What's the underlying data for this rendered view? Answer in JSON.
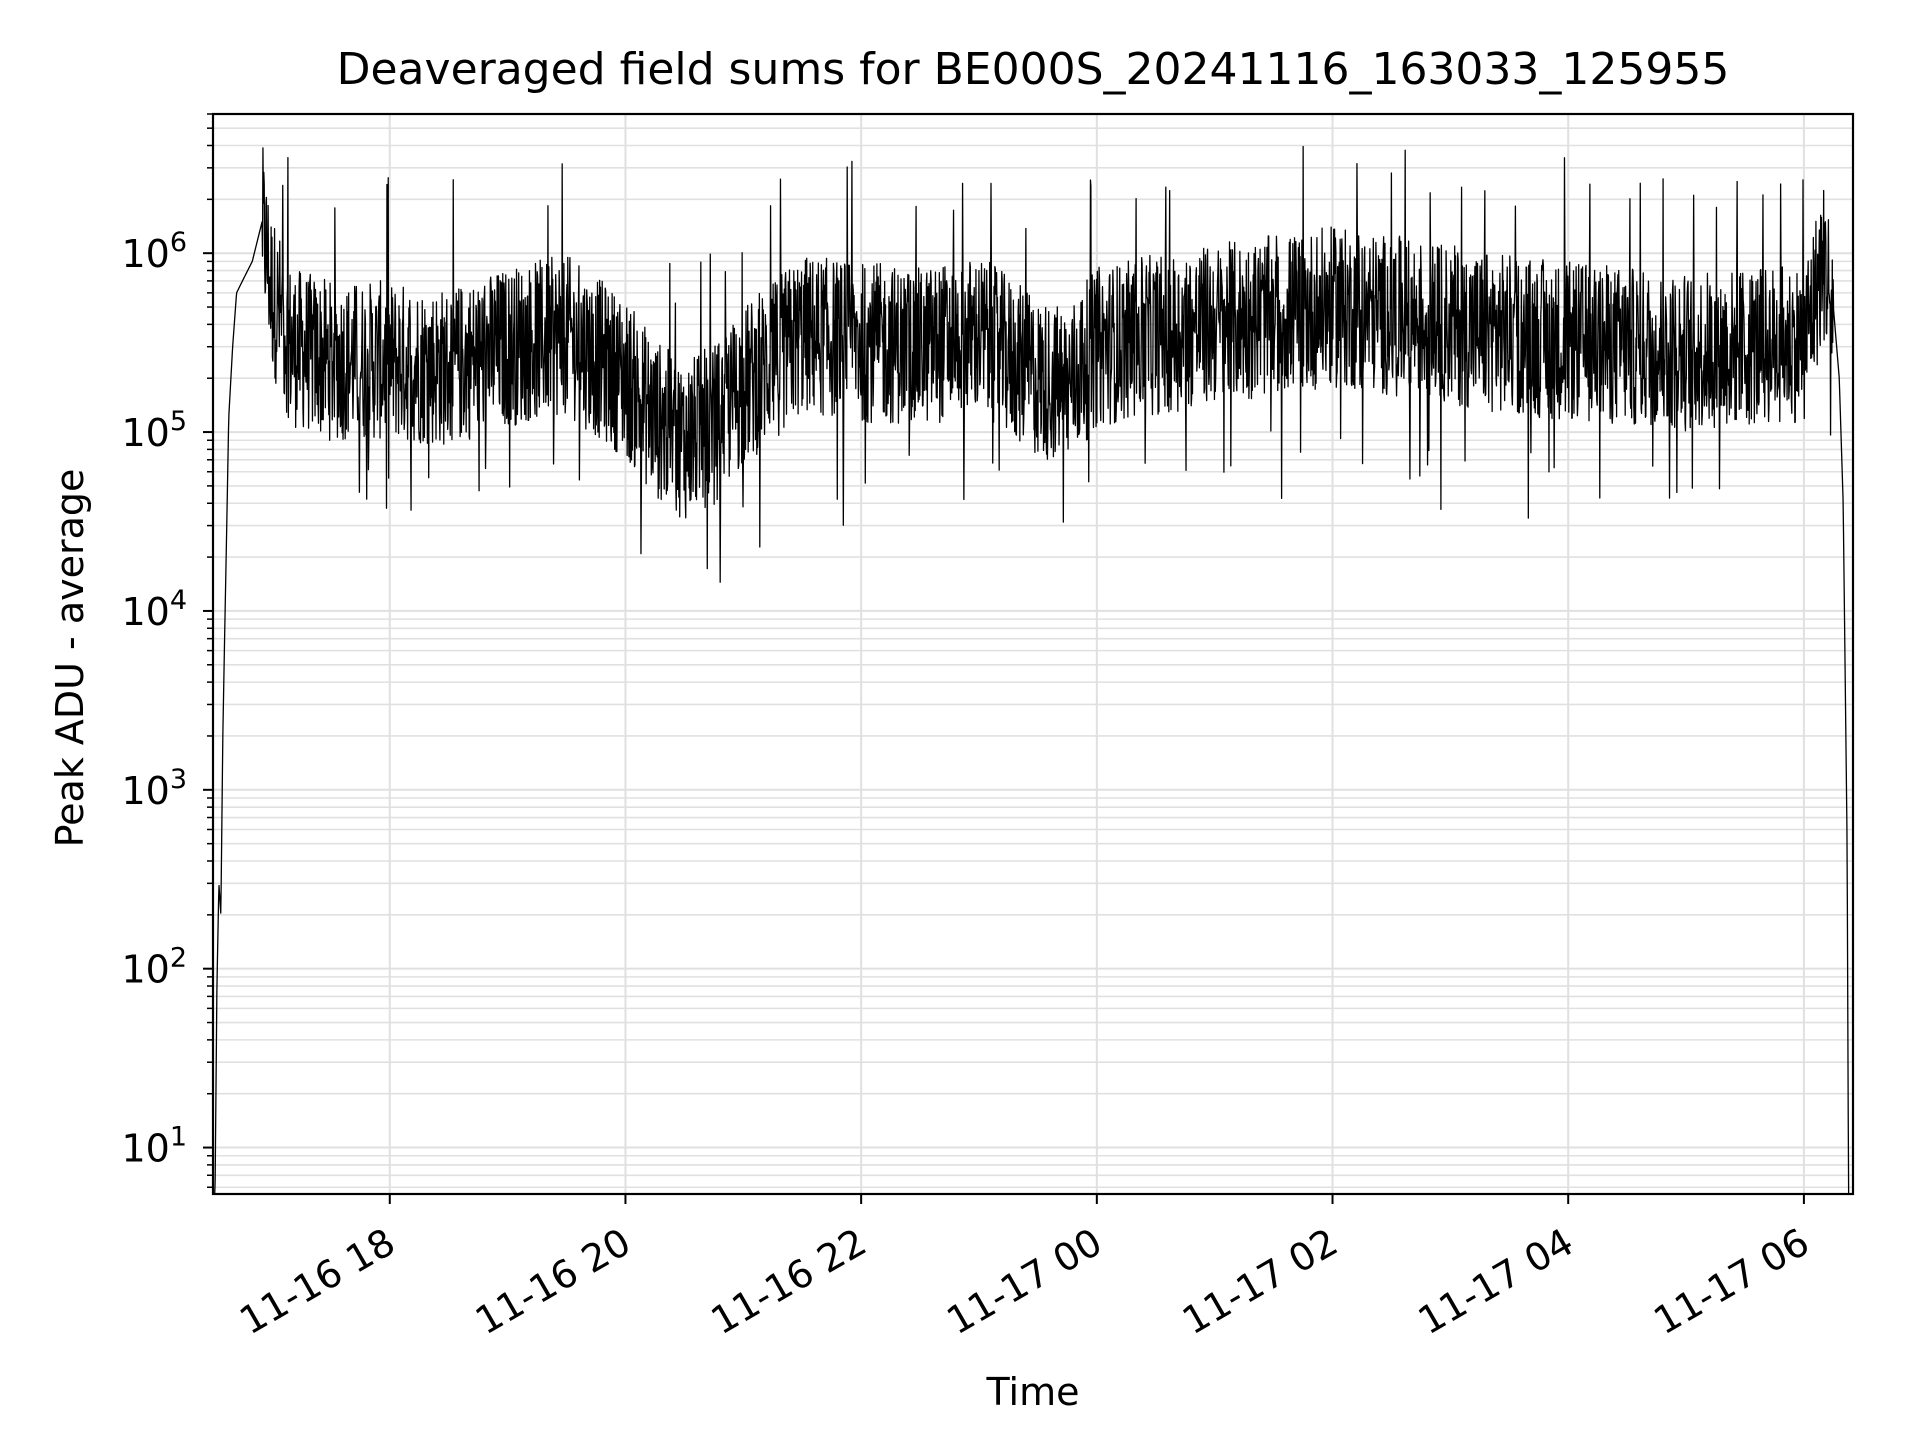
{
  "chart_data": {
    "type": "line",
    "title": "Deaveraged field sums for BE000S_20241116_163033_125955",
    "xlabel": "Time",
    "ylabel": "Peak ADU - average",
    "x_tick_labels": [
      "11-16 18",
      "11-16 20",
      "11-16 22",
      "11-17 00",
      "11-17 02",
      "11-17 04",
      "11-17 06"
    ],
    "y_tick_labels": [
      {
        "base": "10",
        "exp": "1"
      },
      {
        "base": "10",
        "exp": "2"
      },
      {
        "base": "10",
        "exp": "3"
      },
      {
        "base": "10",
        "exp": "4"
      },
      {
        "base": "10",
        "exp": "5"
      },
      {
        "base": "10",
        "exp": "6"
      }
    ],
    "x_range": [
      "2024-11-16 16:30",
      "2024-11-17 06:25"
    ],
    "y_range": [
      5.5,
      6000000
    ],
    "y_scale": "log",
    "grid": "major and minor",
    "line_color": "#000000",
    "grid_color": "#e0e0e0",
    "series": [
      {
        "points": [
          [
            "2024-11-16 16:30",
            0
          ],
          [
            "2024-11-16 16:31",
            5
          ],
          [
            "2024-11-16 16:32",
            80
          ],
          [
            "2024-11-16 16:33",
            300
          ],
          [
            "2024-11-16 16:34",
            200
          ],
          [
            "2024-11-16 16:35",
            2000
          ],
          [
            "2024-11-16 16:36",
            8000
          ],
          [
            "2024-11-16 16:37",
            30000
          ],
          [
            "2024-11-16 16:38",
            120000
          ],
          [
            "2024-11-16 16:40",
            300000
          ],
          [
            "2024-11-16 16:42",
            600000
          ],
          [
            "2024-11-16 16:45",
            700000
          ],
          [
            "2024-11-16 16:50",
            900000
          ],
          [
            "2024-11-16 16:55",
            1500000
          ],
          [
            "2024-11-16 17:00",
            600000
          ],
          [
            "2024-11-16 17:10",
            300000
          ],
          [
            "2024-11-16 17:30",
            250000
          ],
          [
            "2024-11-16 18:00",
            250000
          ],
          [
            "2024-11-16 18:30",
            230000
          ],
          [
            "2024-11-16 19:00",
            300000
          ],
          [
            "2024-11-16 19:30",
            350000
          ],
          [
            "2024-11-16 20:00",
            200000
          ],
          [
            "2024-11-16 20:15",
            120000
          ],
          [
            "2024-11-16 20:30",
            90000
          ],
          [
            "2024-11-16 20:45",
            110000
          ],
          [
            "2024-11-16 21:00",
            180000
          ],
          [
            "2024-11-16 21:30",
            350000
          ],
          [
            "2024-11-16 22:00",
            320000
          ],
          [
            "2024-11-16 22:30",
            300000
          ],
          [
            "2024-11-16 23:00",
            350000
          ],
          [
            "2024-11-16 23:30",
            200000
          ],
          [
            "2024-11-16 23:45",
            180000
          ],
          [
            "2024-11-17 00:00",
            300000
          ],
          [
            "2024-11-17 00:30",
            350000
          ],
          [
            "2024-11-17 01:00",
            400000
          ],
          [
            "2024-11-17 01:30",
            450000
          ],
          [
            "2024-11-17 02:00",
            500000
          ],
          [
            "2024-11-17 02:30",
            450000
          ],
          [
            "2024-11-17 03:00",
            400000
          ],
          [
            "2024-11-17 03:30",
            350000
          ],
          [
            "2024-11-17 04:00",
            320000
          ],
          [
            "2024-11-17 04:30",
            300000
          ],
          [
            "2024-11-17 05:00",
            280000
          ],
          [
            "2024-11-17 05:30",
            300000
          ],
          [
            "2024-11-17 06:00",
            320000
          ],
          [
            "2024-11-17 06:10",
            900000
          ],
          [
            "2024-11-17 06:15",
            500000
          ],
          [
            "2024-11-17 06:18",
            200000
          ],
          [
            "2024-11-17 06:20",
            40000
          ],
          [
            "2024-11-17 06:22",
            500
          ],
          [
            "2024-11-17 06:23",
            0
          ]
        ]
      }
    ]
  }
}
